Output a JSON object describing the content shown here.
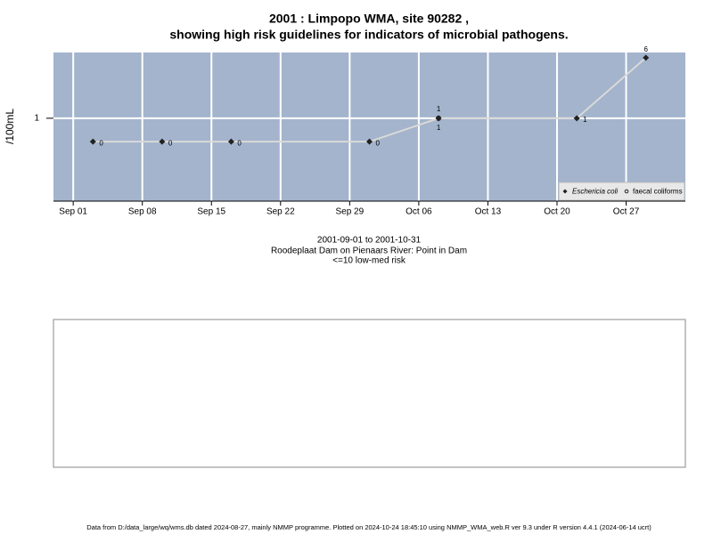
{
  "chart_data": {
    "type": "line",
    "title": "2001 : Limpopo WMA, site 90282 ,",
    "title_line2": "showing high risk guidelines for indicators of microbial pathogens.",
    "y_label": "/100mL",
    "subtitle": [
      "2001-09-01 to 2001-10-31",
      "Roodeplaat Dam on Pienaars River: Point in Dam",
      "<=10 low-med risk"
    ],
    "footer": "Data from D:/data_large/wq/wms.db dated 2024-08-27, mainly NMMP programme. Plotted on 2024-10-24 18:45:10 using NMMP_WMA_web.R ver 9.3 under R version 4.4.1 (2024-06-14 ucrt)",
    "x": [
      "2001-09-03",
      "2001-09-10",
      "2001-09-17",
      "2001-10-01",
      "2001-10-08",
      "2001-10-22",
      "2001-10-29"
    ],
    "series": [
      {
        "name": "Eschericia coli",
        "color": "#222222",
        "values": [
          0,
          0,
          0,
          0,
          1,
          1,
          6
        ]
      },
      {
        "name": "faecal coliforms",
        "color": "#222222",
        "values": [
          null,
          null,
          null,
          null,
          1,
          null,
          null
        ]
      }
    ],
    "xlim": [
      "2001-08-30",
      "2001-11-02"
    ],
    "xticks": [
      {
        "value": "2001-09-01",
        "label": "Sep 01"
      },
      {
        "value": "2001-09-08",
        "label": "Sep 08"
      },
      {
        "value": "2001-09-15",
        "label": "Sep 15"
      },
      {
        "value": "2001-09-22",
        "label": "Sep 22"
      },
      {
        "value": "2001-09-29",
        "label": "Sep 29"
      },
      {
        "value": "2001-10-06",
        "label": "Oct 06"
      },
      {
        "value": "2001-10-13",
        "label": "Oct 13"
      },
      {
        "value": "2001-10-20",
        "label": "Oct 20"
      },
      {
        "value": "2001-10-27",
        "label": "Oct 27"
      }
    ],
    "ylim": [
      0.086,
      7
    ],
    "yticks": [
      1
    ],
    "log_y": true,
    "grid": true,
    "legend": "bottom-right",
    "background": "#a3b4cc",
    "line_color": "#d9d9d9"
  }
}
